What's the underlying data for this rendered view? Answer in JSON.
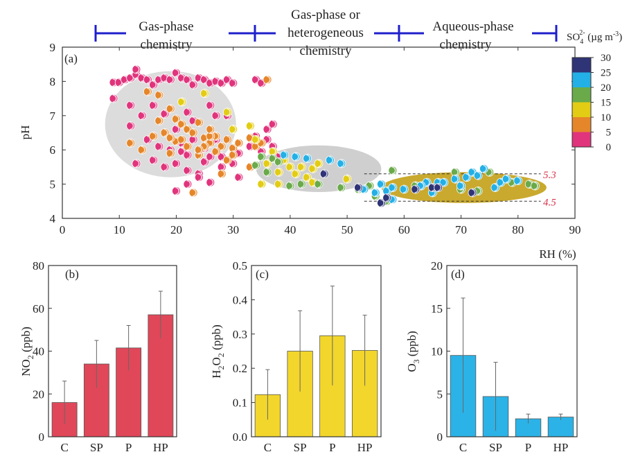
{
  "regimes": {
    "items": [
      {
        "line1": "Gas-phase",
        "line2": "chemistry"
      },
      {
        "line1": "Gas-phase or",
        "line2": "heterogeneous",
        "line3": "chemistry"
      },
      {
        "line1": "Aqueous-phase",
        "line2": "chemistry"
      }
    ],
    "bar_color": "#1f1fcc"
  },
  "colorbar": {
    "title_text": "SO",
    "title_sub": "4",
    "title_sup": "2-",
    "title_unit": " (µg m",
    "title_unit_sup": "-3",
    "title_close": ")",
    "ticks": [
      "0",
      "5",
      "10",
      "15",
      "20",
      "25",
      "30"
    ],
    "colors": [
      "#e0357c",
      "#e5862a",
      "#e3cc14",
      "#6aaa4a",
      "#22b0e6",
      "#2e3475"
    ]
  },
  "chart_data": [
    {
      "type": "scatter",
      "panel_label": "(a)",
      "xlabel": "RH (%)",
      "ylabel": "pH",
      "xlim": [
        0,
        90
      ],
      "ylim": [
        4,
        9
      ],
      "xticks": [
        "0",
        "10",
        "20",
        "30",
        "40",
        "50",
        "60",
        "70",
        "80",
        "90"
      ],
      "yticks": [
        "4",
        "5",
        "6",
        "7",
        "8",
        "9"
      ],
      "reference_lines": [
        {
          "y": 5.3,
          "label": "5.3"
        },
        {
          "y": 4.5,
          "label": "4.5"
        }
      ],
      "regions": [
        {
          "shape": "ellipse",
          "cx": 19,
          "cy": 6.75,
          "rx": 11.5,
          "ry": 1.55,
          "color": "#dcdcdc"
        },
        {
          "shape": "ellipse",
          "cx": 45,
          "cy": 5.45,
          "rx": 11,
          "ry": 0.68,
          "color": "#cfcfcf"
        },
        {
          "shape": "ellipse",
          "cx": 70.5,
          "cy": 4.9,
          "rx": 14.5,
          "ry": 0.45,
          "color": "#c9a92e"
        }
      ],
      "points_by_so4_bin": [
        {
          "bin": 0,
          "points": [
            [
              9,
              7.97
            ],
            [
              10,
              7.97
            ],
            [
              11,
              8.05
            ],
            [
              12,
              8.1
            ],
            [
              13,
              8.2
            ],
            [
              13,
              8.35
            ],
            [
              14,
              8.1
            ],
            [
              15,
              8.05
            ],
            [
              16,
              7.9
            ],
            [
              17,
              8.05
            ],
            [
              18,
              8.1
            ],
            [
              19,
              8.05
            ],
            [
              20,
              8.25
            ],
            [
              21,
              8.1
            ],
            [
              22,
              8.05
            ],
            [
              23,
              7.9
            ],
            [
              24,
              8.1
            ],
            [
              25,
              8.05
            ],
            [
              26,
              7.95
            ],
            [
              27,
              8.0
            ],
            [
              28,
              7.95
            ],
            [
              29,
              8.05
            ],
            [
              30,
              7.95
            ],
            [
              34,
              8.05
            ],
            [
              35,
              7.95
            ],
            [
              9,
              7.5
            ],
            [
              12,
              7.3
            ],
            [
              14,
              7.0
            ],
            [
              16,
              7.3
            ],
            [
              18,
              7.05
            ],
            [
              20,
              6.6
            ],
            [
              22,
              7.1
            ],
            [
              23,
              6.85
            ],
            [
              26,
              7.3
            ],
            [
              27,
              7.0
            ],
            [
              29,
              7.0
            ],
            [
              12,
              6.7
            ],
            [
              15,
              6.3
            ],
            [
              17,
              6.1
            ],
            [
              19,
              6.0
            ],
            [
              21,
              6.2
            ],
            [
              23,
              6.3
            ],
            [
              24,
              5.95
            ],
            [
              25,
              6.05
            ],
            [
              27,
              6.3
            ],
            [
              28,
              5.8
            ],
            [
              31,
              5.9
            ],
            [
              33,
              6.1
            ],
            [
              36,
              6.3
            ],
            [
              37,
              6.1
            ],
            [
              35,
              5.95
            ],
            [
              13,
              5.6
            ],
            [
              16,
              5.7
            ],
            [
              18,
              5.5
            ],
            [
              20,
              5.6
            ],
            [
              22,
              5.4
            ],
            [
              24,
              5.3
            ],
            [
              25,
              5.65
            ],
            [
              26,
              5.8
            ],
            [
              28,
              5.5
            ],
            [
              30,
              5.6
            ],
            [
              31,
              5.2
            ],
            [
              20,
              4.8
            ],
            [
              22,
              5.0
            ],
            [
              24,
              5.2
            ],
            [
              26,
              5.05
            ],
            [
              34,
              6.4
            ],
            [
              36,
              6.6
            ],
            [
              37,
              6.75
            ],
            [
              38,
              5.8
            ],
            [
              21,
              5.95
            ],
            [
              22,
              5.85
            ]
          ]
        },
        {
          "bin": 1,
          "points": [
            [
              15,
              7.7
            ],
            [
              17,
              7.6
            ],
            [
              19,
              7.2
            ],
            [
              20,
              6.9
            ],
            [
              21,
              6.75
            ],
            [
              22,
              6.6
            ],
            [
              23,
              6.5
            ],
            [
              24,
              6.8
            ],
            [
              25,
              6.35
            ],
            [
              26,
              6.2
            ],
            [
              27,
              6.4
            ],
            [
              28,
              6.1
            ],
            [
              29,
              6.3
            ],
            [
              30,
              6.05
            ],
            [
              31,
              6.2
            ],
            [
              33,
              6.35
            ],
            [
              34,
              6.1
            ],
            [
              35,
              6.2
            ],
            [
              12,
              6.2
            ],
            [
              14,
              6.0
            ],
            [
              16,
              6.4
            ],
            [
              18,
              6.5
            ],
            [
              19,
              5.9
            ],
            [
              20,
              6.25
            ],
            [
              22,
              6.1
            ],
            [
              24,
              5.85
            ],
            [
              25,
              6.1
            ],
            [
              26,
              6.4
            ],
            [
              27,
              5.95
            ],
            [
              29,
              5.7
            ],
            [
              30,
              5.85
            ],
            [
              33,
              5.5
            ],
            [
              36,
              8.05
            ],
            [
              23,
              4.75
            ],
            [
              28,
              5.3
            ],
            [
              24,
              6.0
            ],
            [
              21,
              6.3
            ],
            [
              17,
              6.85
            ],
            [
              19,
              6.35
            ],
            [
              26,
              6.6
            ]
          ]
        },
        {
          "bin": 2,
          "points": [
            [
              21,
              7.4
            ],
            [
              25,
              7.65
            ],
            [
              29,
              7.1
            ],
            [
              30,
              6.6
            ],
            [
              33,
              6.7
            ],
            [
              34,
              6.3
            ],
            [
              36,
              5.6
            ],
            [
              38,
              5.35
            ],
            [
              38,
              5.0
            ],
            [
              40,
              5.5
            ],
            [
              41,
              5.3
            ],
            [
              42,
              5.5
            ],
            [
              43,
              5.2
            ],
            [
              44,
              5.45
            ],
            [
              44,
              5.05
            ],
            [
              45,
              5.6
            ],
            [
              46,
              5.3
            ],
            [
              50,
              5.15
            ],
            [
              39,
              5.7
            ],
            [
              37,
              5.95
            ],
            [
              35,
              5.0
            ]
          ]
        },
        {
          "bin": 3,
          "points": [
            [
              34,
              5.55
            ],
            [
              35,
              5.8
            ],
            [
              36,
              5.35
            ],
            [
              37,
              5.75
            ],
            [
              38,
              5.65
            ],
            [
              40,
              4.95
            ],
            [
              42,
              5.0
            ],
            [
              45,
              5.0
            ],
            [
              49,
              4.9
            ],
            [
              52,
              4.85
            ],
            [
              54,
              4.95
            ],
            [
              58,
              5.4
            ],
            [
              62,
              4.95
            ],
            [
              69,
              5.35
            ],
            [
              70,
              4.85
            ],
            [
              73,
              4.8
            ],
            [
              75,
              5.35
            ],
            [
              79,
              5.05
            ],
            [
              82,
              5.0
            ],
            [
              83,
              4.95
            ],
            [
              55,
              4.65
            ],
            [
              57,
              4.5
            ]
          ]
        },
        {
          "bin": 4,
          "points": [
            [
              39,
              5.85
            ],
            [
              41,
              5.8
            ],
            [
              43,
              5.75
            ],
            [
              47,
              5.7
            ],
            [
              49,
              5.6
            ],
            [
              53,
              4.85
            ],
            [
              55,
              4.75
            ],
            [
              56,
              5.0
            ],
            [
              57,
              4.8
            ],
            [
              58,
              4.9
            ],
            [
              58,
              4.55
            ],
            [
              60,
              4.85
            ],
            [
              64,
              5.05
            ],
            [
              65,
              4.75
            ],
            [
              66,
              5.05
            ],
            [
              69,
              5.15
            ],
            [
              71,
              5.2
            ],
            [
              72,
              5.35
            ],
            [
              73,
              5.25
            ],
            [
              74,
              5.45
            ],
            [
              76,
              4.9
            ],
            [
              77,
              5.05
            ],
            [
              78,
              5.15
            ],
            [
              80,
              5.1
            ],
            [
              67,
              5.05
            ],
            [
              70,
              4.95
            ],
            [
              63,
              4.95
            ]
          ]
        },
        {
          "bin": 5,
          "points": [
            [
              46,
              5.3
            ],
            [
              52,
              4.9
            ],
            [
              56,
              4.45
            ],
            [
              62,
              4.85
            ],
            [
              65,
              4.9
            ],
            [
              66,
              4.9
            ],
            [
              72,
              4.75
            ],
            [
              57,
              4.6
            ]
          ]
        }
      ]
    },
    {
      "type": "bar",
      "panel_label": "(b)",
      "categories": [
        "C",
        "SP",
        "P",
        "HP"
      ],
      "values": [
        16,
        34,
        41.5,
        57
      ],
      "errors": [
        10,
        11,
        10.5,
        11
      ],
      "ylabel_main": "NO",
      "ylabel_sub": "2",
      "ylabel_unit": " (ppb)",
      "ylim": [
        0,
        80
      ],
      "yticks": [
        "0",
        "20",
        "40",
        "60",
        "80"
      ],
      "color": "#e0485a"
    },
    {
      "type": "bar",
      "panel_label": "(c)",
      "categories": [
        "C",
        "SP",
        "P",
        "HP"
      ],
      "values": [
        0.123,
        0.25,
        0.295,
        0.252
      ],
      "errors": [
        0.073,
        0.118,
        0.145,
        0.103
      ],
      "ylabel_main": "H",
      "ylabel_sub": "2",
      "ylabel_mid": "O",
      "ylabel_sub2": "2",
      "ylabel_unit": " (ppb)",
      "ylim": [
        0,
        0.5
      ],
      "yticks": [
        "0.0",
        "0.1",
        "0.2",
        "0.3",
        "0.4",
        "0.5"
      ],
      "color": "#f2d62b"
    },
    {
      "type": "bar",
      "panel_label": "(d)",
      "categories": [
        "C",
        "SP",
        "P",
        "HP"
      ],
      "values": [
        9.5,
        4.7,
        2.1,
        2.3
      ],
      "errors": [
        6.7,
        4.0,
        0.55,
        0.35
      ],
      "ylabel_main": "O",
      "ylabel_sub": "3",
      "ylabel_unit": " (ppb)",
      "ylim": [
        0,
        20
      ],
      "yticks": [
        "0",
        "5",
        "10",
        "15",
        "20"
      ],
      "color": "#2bb3e8"
    }
  ]
}
